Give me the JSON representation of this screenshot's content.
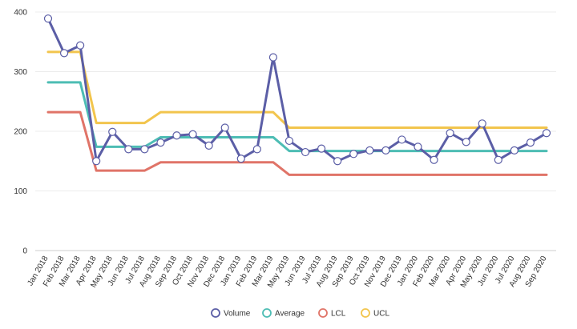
{
  "chart_data": {
    "type": "line",
    "title": "",
    "xlabel": "",
    "ylabel": "",
    "ylim": [
      0,
      400
    ],
    "yticks": [
      0,
      100,
      200,
      300,
      400
    ],
    "grid": true,
    "legend_position": "bottom-center",
    "categories": [
      "Jan 2018",
      "Feb 2018",
      "Mar 2018",
      "Apr 2018",
      "May 2018",
      "Jun 2018",
      "Jul 2018",
      "Aug 2018",
      "Sep 2018",
      "Oct 2018",
      "Nov 2018",
      "Dec 2018",
      "Jan 2019",
      "Feb 2019",
      "Mar 2019",
      "May 2019",
      "Jun 2019",
      "Jul 2019",
      "Aug 2019",
      "Sep 2019",
      "Oct 2019",
      "Nov 2019",
      "Dec 2019",
      "Jan 2020",
      "Feb 2020",
      "Mar 2020",
      "Apr 2020",
      "May 2020",
      "Jun 2020",
      "Jul 2020",
      "Aug 2020",
      "Sep 2020"
    ],
    "series": [
      {
        "name": "Volume",
        "color": "#5b5ea6",
        "markers": true,
        "values": [
          389,
          331,
          344,
          150,
          199,
          170,
          170,
          181,
          193,
          195,
          176,
          206,
          154,
          170,
          324,
          184,
          165,
          171,
          150,
          162,
          168,
          168,
          186,
          174,
          152,
          197,
          182,
          213,
          152,
          168,
          181,
          197
        ]
      },
      {
        "name": "Average",
        "color": "#4dbdb4",
        "markers": false,
        "values": [
          282,
          282,
          282,
          174,
          174,
          174,
          174,
          190,
          190,
          190,
          190,
          190,
          190,
          190,
          190,
          167,
          167,
          167,
          167,
          167,
          167,
          167,
          167,
          167,
          167,
          167,
          167,
          167,
          167,
          167,
          167,
          167
        ]
      },
      {
        "name": "LCL",
        "color": "#e07468",
        "markers": false,
        "values": [
          232,
          232,
          232,
          134,
          134,
          134,
          134,
          148,
          148,
          148,
          148,
          148,
          148,
          148,
          148,
          127,
          127,
          127,
          127,
          127,
          127,
          127,
          127,
          127,
          127,
          127,
          127,
          127,
          127,
          127,
          127,
          127
        ]
      },
      {
        "name": "UCL",
        "color": "#f2c54d",
        "markers": false,
        "values": [
          333,
          333,
          333,
          214,
          214,
          214,
          214,
          232,
          232,
          232,
          232,
          232,
          232,
          232,
          232,
          206,
          206,
          206,
          206,
          206,
          206,
          206,
          206,
          206,
          206,
          206,
          206,
          206,
          206,
          206,
          206,
          206
        ]
      }
    ]
  }
}
